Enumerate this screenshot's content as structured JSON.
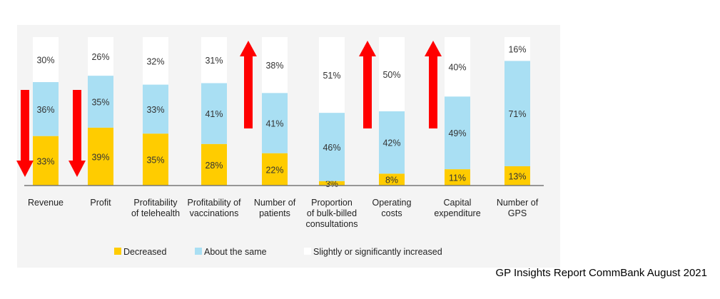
{
  "chart_data": {
    "type": "bar",
    "stacked": true,
    "title": "",
    "xlabel": "",
    "ylabel": "",
    "ylim": [
      0,
      100
    ],
    "grid": false,
    "legend_position": "bottom",
    "categories": [
      [
        "Revenue"
      ],
      [
        "Profit"
      ],
      [
        "Profitability",
        "of telehealth"
      ],
      [
        "Profitability of",
        "vaccinations"
      ],
      [
        "Number of",
        "patients"
      ],
      [
        "Proportion",
        "of bulk-billed",
        "consultations"
      ],
      [
        "Operating",
        "costs"
      ],
      [
        "Capital",
        "expenditure"
      ],
      [
        "Number of",
        "GPS"
      ]
    ],
    "series": [
      {
        "name": "Decreased",
        "color": "#FFCC00",
        "values": [
          33,
          39,
          35,
          28,
          22,
          3,
          8,
          11,
          13
        ]
      },
      {
        "name": "About the same",
        "color": "#A9DFF3",
        "values": [
          36,
          35,
          33,
          41,
          41,
          46,
          42,
          49,
          71
        ]
      },
      {
        "name": "Slightly or significantly increased",
        "color": "#FFFFFF",
        "values": [
          30,
          26,
          32,
          31,
          38,
          51,
          50,
          40,
          16
        ]
      }
    ],
    "data_label_format": "{v}%",
    "annotations": [
      {
        "type": "arrow",
        "direction": "down",
        "color": "#FF0000",
        "category": "Revenue"
      },
      {
        "type": "arrow",
        "direction": "down",
        "color": "#FF0000",
        "category": "Profit"
      },
      {
        "type": "arrow",
        "direction": "up",
        "color": "#FF0000",
        "category": "Number of patients"
      },
      {
        "type": "arrow",
        "direction": "up",
        "color": "#FF0000",
        "category": "Operating costs"
      },
      {
        "type": "arrow",
        "direction": "up",
        "color": "#FF0000",
        "category": "Capital expenditure"
      }
    ],
    "background": "#F4F4F4"
  },
  "source": "GP Insights  Report CommBank August 2021"
}
